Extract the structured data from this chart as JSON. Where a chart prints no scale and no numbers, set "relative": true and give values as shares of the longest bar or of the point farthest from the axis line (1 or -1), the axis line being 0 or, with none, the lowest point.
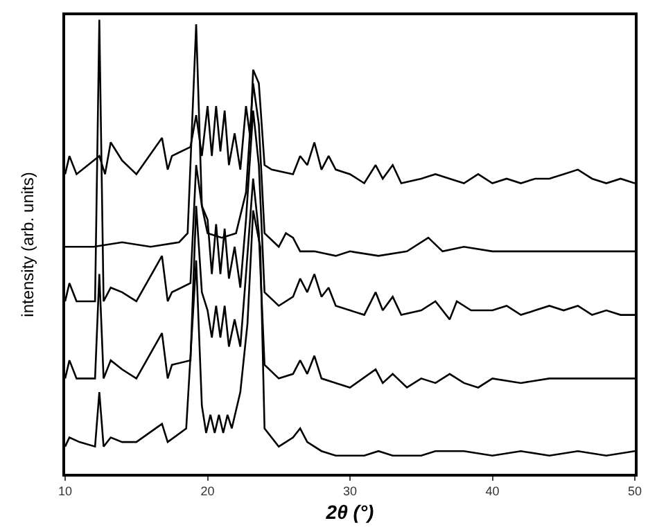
{
  "chart_data": {
    "type": "line",
    "relative": true,
    "xlabel": "2θ (°)",
    "ylabel": "intensity (arb. units)",
    "xlim": [
      10,
      50
    ],
    "xticks": [
      10,
      20,
      30,
      40,
      50
    ],
    "tick_labels": "x",
    "marker": "none",
    "line_style": "solid",
    "series": [
      {
        "color": "#000000",
        "x": [
          10,
          10.3,
          10.8,
          12.4,
          12.8,
          13.2,
          14,
          15,
          16.8,
          17.2,
          17.5,
          18.8,
          19.2,
          19.6,
          20,
          20.3,
          20.6,
          20.9,
          21.2,
          21.5,
          21.9,
          22.3,
          22.7,
          23,
          23.2,
          23.6,
          24,
          24.5,
          26,
          26.5,
          27,
          27.5,
          28,
          28.5,
          29,
          30,
          31,
          31.8,
          32.3,
          33,
          33.6,
          35,
          36,
          37,
          38,
          39,
          40,
          41,
          42,
          43,
          44,
          45,
          46,
          47,
          48,
          49,
          50
        ],
        "values": [
          0.66,
          0.7,
          0.66,
          0.7,
          0.66,
          0.73,
          0.69,
          0.66,
          0.74,
          0.67,
          0.7,
          0.72,
          0.79,
          0.7,
          0.81,
          0.7,
          0.81,
          0.71,
          0.8,
          0.68,
          0.75,
          0.67,
          0.81,
          0.74,
          0.89,
          0.86,
          0.68,
          0.67,
          0.66,
          0.7,
          0.68,
          0.73,
          0.67,
          0.7,
          0.67,
          0.66,
          0.64,
          0.68,
          0.65,
          0.68,
          0.64,
          0.65,
          0.66,
          0.65,
          0.64,
          0.66,
          0.64,
          0.65,
          0.64,
          0.65,
          0.65,
          0.66,
          0.67,
          0.65,
          0.64,
          0.65,
          0.64
        ]
      },
      {
        "color": "#000000",
        "x": [
          10,
          12,
          14,
          16,
          18,
          18.6,
          19.2,
          19.6,
          20,
          21,
          22,
          22.7,
          23.2,
          23.6,
          24,
          25,
          25.5,
          26,
          26.5,
          27.5,
          29,
          30,
          32,
          34,
          35.5,
          36.5,
          38,
          40,
          42,
          44,
          46,
          48,
          50
        ],
        "values": [
          0.5,
          0.5,
          0.51,
          0.5,
          0.51,
          0.53,
          0.99,
          0.59,
          0.53,
          0.52,
          0.53,
          0.62,
          0.86,
          0.77,
          0.53,
          0.5,
          0.53,
          0.52,
          0.49,
          0.49,
          0.48,
          0.49,
          0.48,
          0.49,
          0.52,
          0.49,
          0.5,
          0.49,
          0.49,
          0.49,
          0.49,
          0.49,
          0.49
        ]
      },
      {
        "color": "#000000",
        "x": [
          10,
          10.3,
          10.8,
          12.1,
          12.4,
          12.7,
          13.2,
          14,
          15,
          16.8,
          17.2,
          17.5,
          18.8,
          19.2,
          19.6,
          20,
          20.3,
          20.6,
          20.9,
          21.2,
          21.5,
          21.9,
          22.3,
          22.7,
          23.2,
          23.6,
          24,
          25,
          26,
          26.5,
          27,
          27.5,
          28,
          28.5,
          29,
          30,
          31,
          31.8,
          32.3,
          33,
          33.6,
          35,
          36,
          37,
          37.5,
          38.5,
          40,
          41,
          42,
          43,
          44,
          45,
          46,
          47,
          48,
          49,
          50
        ],
        "values": [
          0.38,
          0.42,
          0.38,
          0.38,
          1.0,
          0.38,
          0.41,
          0.4,
          0.38,
          0.48,
          0.38,
          0.4,
          0.42,
          0.68,
          0.59,
          0.56,
          0.44,
          0.55,
          0.44,
          0.54,
          0.43,
          0.5,
          0.41,
          0.56,
          0.8,
          0.68,
          0.4,
          0.37,
          0.39,
          0.43,
          0.4,
          0.44,
          0.39,
          0.41,
          0.37,
          0.36,
          0.35,
          0.4,
          0.36,
          0.39,
          0.35,
          0.36,
          0.38,
          0.34,
          0.38,
          0.36,
          0.36,
          0.37,
          0.35,
          0.36,
          0.37,
          0.36,
          0.37,
          0.35,
          0.36,
          0.35,
          0.35
        ]
      },
      {
        "color": "#000000",
        "x": [
          10,
          10.3,
          10.8,
          12.1,
          12.4,
          12.7,
          13.2,
          14,
          15,
          16.8,
          17.2,
          17.5,
          18.8,
          19.2,
          19.6,
          20,
          20.3,
          20.6,
          20.9,
          21.2,
          21.5,
          21.9,
          22.3,
          22.7,
          23.2,
          23.6,
          24,
          25,
          26,
          26.5,
          27,
          27.5,
          28,
          29,
          30,
          31.8,
          32.3,
          33,
          34,
          35,
          36,
          37,
          38,
          39,
          40,
          42,
          44,
          46,
          48,
          50
        ],
        "values": [
          0.21,
          0.25,
          0.21,
          0.21,
          0.44,
          0.21,
          0.25,
          0.23,
          0.21,
          0.31,
          0.21,
          0.24,
          0.25,
          0.59,
          0.4,
          0.36,
          0.3,
          0.37,
          0.3,
          0.37,
          0.28,
          0.34,
          0.28,
          0.44,
          0.65,
          0.53,
          0.24,
          0.21,
          0.22,
          0.25,
          0.22,
          0.26,
          0.21,
          0.2,
          0.19,
          0.23,
          0.2,
          0.22,
          0.19,
          0.21,
          0.2,
          0.22,
          0.2,
          0.19,
          0.21,
          0.2,
          0.21,
          0.21,
          0.21,
          0.21
        ]
      },
      {
        "color": "#000000",
        "x": [
          10,
          10.3,
          11,
          12.1,
          12.4,
          12.7,
          13.2,
          14,
          15,
          16.8,
          17.2,
          18.5,
          19.2,
          19.6,
          19.9,
          20.2,
          20.5,
          20.8,
          21.1,
          21.4,
          21.7,
          22.3,
          22.8,
          23.2,
          23.7,
          24,
          25,
          26,
          26.5,
          27,
          28,
          29,
          30,
          31,
          32,
          33,
          35,
          36,
          38,
          40,
          42,
          44,
          46,
          48,
          50
        ],
        "values": [
          0.06,
          0.08,
          0.07,
          0.06,
          0.18,
          0.06,
          0.08,
          0.07,
          0.07,
          0.11,
          0.07,
          0.1,
          0.47,
          0.15,
          0.09,
          0.13,
          0.09,
          0.13,
          0.09,
          0.13,
          0.1,
          0.18,
          0.33,
          0.58,
          0.5,
          0.1,
          0.06,
          0.08,
          0.1,
          0.07,
          0.05,
          0.04,
          0.04,
          0.04,
          0.05,
          0.04,
          0.04,
          0.05,
          0.05,
          0.04,
          0.05,
          0.04,
          0.05,
          0.04,
          0.05
        ]
      }
    ]
  }
}
